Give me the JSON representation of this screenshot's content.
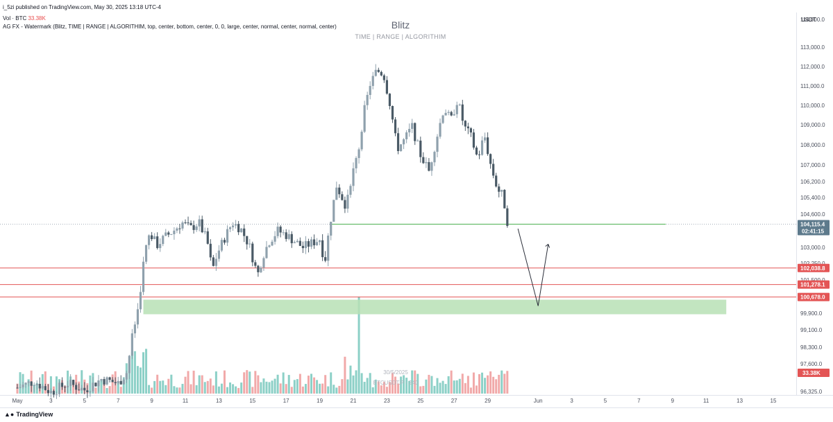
{
  "header": {
    "published": "i_5zi published on TradingView.com, May 30, 2025 13:18 UTC-4",
    "vol_label": "Vol · BTC",
    "vol_value": "33.38K",
    "indicator": "AG FX - Watermark (Blitz, TIME | RANGE | ALGORITHIM, top, center, bottom, center, 0, 0, large, center, normal, center, normal, center)"
  },
  "watermark": {
    "title": "Blitz",
    "subtitle": "TIME  |  RANGE  |  ALGORITHIM",
    "center_date": "30/5/2025",
    "center_symbol": "BTCUSDT.P · 240"
  },
  "currency": "USDT",
  "footer": {
    "brand": "TradingView"
  },
  "colors": {
    "up": "#8fa1ad",
    "down": "#4a5a66",
    "vol_up": "#7fcbc1",
    "vol_down": "#f0a0a0",
    "level": "#e35555",
    "zone": "#b7e0b5",
    "green_line": "#4caf50"
  },
  "chart_data": {
    "type": "candlestick",
    "symbol": "BTCUSDT.P",
    "interval": "240",
    "y_ticks": [
      114000,
      113000,
      112000,
      111000,
      110000,
      109000,
      108000,
      107000,
      106200,
      105400,
      104600,
      103000,
      102250,
      101500,
      99900,
      99100,
      98300,
      97600,
      96325
    ],
    "y_tick_labels": [
      "114,000.0",
      "113,000.0",
      "112,000.0",
      "111,000.0",
      "110,000.0",
      "109,000.0",
      "108,000.0",
      "107,000.0",
      "106,200.0",
      "105,400.0",
      "104,600.0",
      "103,000.0",
      "102,250.0",
      "101,500.0",
      "99,900.0",
      "99,100.0",
      "98,300.0",
      "97,600.0",
      "96,325.0"
    ],
    "x_ticks": [
      {
        "day": 1,
        "label": "May"
      },
      {
        "day": 3,
        "label": "3"
      },
      {
        "day": 5,
        "label": "5"
      },
      {
        "day": 7,
        "label": "7"
      },
      {
        "day": 9,
        "label": "9"
      },
      {
        "day": 11,
        "label": "11"
      },
      {
        "day": 13,
        "label": "13"
      },
      {
        "day": 15,
        "label": "15"
      },
      {
        "day": 17,
        "label": "17"
      },
      {
        "day": 19,
        "label": "19"
      },
      {
        "day": 21,
        "label": "21"
      },
      {
        "day": 23,
        "label": "23"
      },
      {
        "day": 25,
        "label": "25"
      },
      {
        "day": 27,
        "label": "27"
      },
      {
        "day": 29,
        "label": "29"
      },
      {
        "day": 32,
        "label": "Jun"
      },
      {
        "day": 34,
        "label": "3"
      },
      {
        "day": 36,
        "label": "5"
      },
      {
        "day": 38,
        "label": "7"
      },
      {
        "day": 40,
        "label": "9"
      },
      {
        "day": 42,
        "label": "11"
      },
      {
        "day": 44,
        "label": "13"
      },
      {
        "day": 46,
        "label": "15"
      }
    ],
    "closes_path": [
      [
        1.0,
        96500
      ],
      [
        2.0,
        96800
      ],
      [
        3.0,
        96300
      ],
      [
        4.0,
        96700
      ],
      [
        5.0,
        96400
      ],
      [
        6.0,
        96900
      ],
      [
        7.0,
        96700
      ],
      [
        7.5,
        97200
      ],
      [
        7.8,
        98600
      ],
      [
        8.0,
        99400
      ],
      [
        8.2,
        100200
      ],
      [
        8.4,
        101600
      ],
      [
        8.6,
        102800
      ],
      [
        8.9,
        103700
      ],
      [
        9.3,
        103100
      ],
      [
        9.8,
        103500
      ],
      [
        10.3,
        103800
      ],
      [
        10.8,
        104200
      ],
      [
        11.3,
        103900
      ],
      [
        11.8,
        104200
      ],
      [
        12.3,
        103300
      ],
      [
        12.6,
        101900
      ],
      [
        12.9,
        102700
      ],
      [
        13.3,
        103400
      ],
      [
        13.8,
        104200
      ],
      [
        14.3,
        103900
      ],
      [
        14.8,
        103100
      ],
      [
        15.3,
        101700
      ],
      [
        15.6,
        102600
      ],
      [
        16.0,
        103300
      ],
      [
        16.5,
        103800
      ],
      [
        17.0,
        103600
      ],
      [
        17.5,
        103300
      ],
      [
        18.0,
        103000
      ],
      [
        18.5,
        103200
      ],
      [
        19.0,
        103400
      ],
      [
        19.3,
        102300
      ],
      [
        19.6,
        104100
      ],
      [
        20.0,
        106000
      ],
      [
        20.5,
        105100
      ],
      [
        21.0,
        106700
      ],
      [
        21.3,
        107700
      ],
      [
        21.6,
        109500
      ],
      [
        22.0,
        111100
      ],
      [
        22.4,
        111800
      ],
      [
        22.8,
        111600
      ],
      [
        23.2,
        110000
      ],
      [
        23.6,
        107800
      ],
      [
        24.0,
        108200
      ],
      [
        24.5,
        108900
      ],
      [
        25.0,
        107500
      ],
      [
        25.5,
        106700
      ],
      [
        26.0,
        108500
      ],
      [
        26.4,
        109900
      ],
      [
        26.8,
        109200
      ],
      [
        27.2,
        110300
      ],
      [
        27.6,
        108900
      ],
      [
        28.0,
        108400
      ],
      [
        28.4,
        107300
      ],
      [
        28.8,
        108500
      ],
      [
        29.2,
        106900
      ],
      [
        29.6,
        105800
      ],
      [
        29.9,
        105500
      ],
      [
        30.2,
        104115
      ]
    ],
    "volume_k_range": [
      0,
      80
    ],
    "levels": [
      {
        "label": "102,038.8",
        "value": 102038.8
      },
      {
        "label": "101,278.1",
        "value": 101278.1
      },
      {
        "label": "100,678.0",
        "value": 100678.0
      }
    ],
    "demand_zone": {
      "from_day": 8.5,
      "to_day": 43.2,
      "top": 100550,
      "bottom": 99850
    },
    "horizontal_line": {
      "value": 104115.4,
      "from_day": 19.6,
      "to_day": 39.6
    },
    "projection": [
      [
        30.8,
        103900
      ],
      [
        32.0,
        100250
      ],
      [
        32.6,
        103150
      ]
    ],
    "last_price": {
      "label": "104,115.4",
      "value": 104115.4,
      "countdown": "02:41:15"
    },
    "volume_tag": "33.38K"
  }
}
